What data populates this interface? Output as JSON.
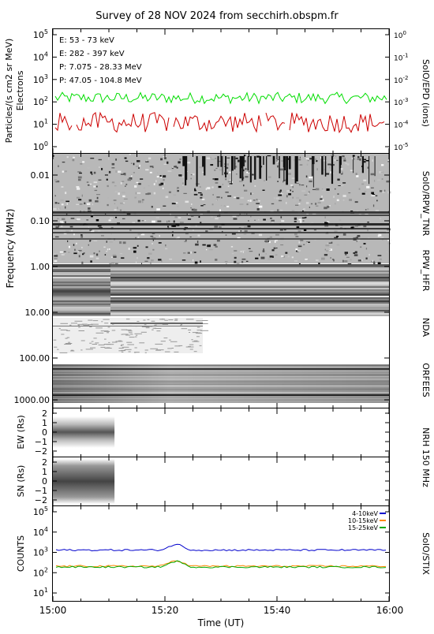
{
  "title": "Survey of 28 NOV 2024 from secchirh.obspm.fr",
  "time_axis": {
    "label": "Time (UT)",
    "ticks": [
      "15:00",
      "15:20",
      "15:40",
      "16:00"
    ],
    "range": [
      "15:00",
      "16:00"
    ]
  },
  "chart_data": [
    {
      "type": "line",
      "panel": "SolO/EPD",
      "ylabel": "Particles/(s cm2 sr MeV)",
      "ylabel2": "Electrons",
      "right_label": "SoIO/EPD (ions)",
      "left_ticks": [
        "10^0",
        "10^1",
        "10^2",
        "10^3",
        "10^4",
        "10^5"
      ],
      "right_ticks": [
        "10^-5",
        "10^-4",
        "10^-3",
        "10^-2",
        "10^-1",
        "10^0"
      ],
      "yscale": "log",
      "ylim": [
        1,
        100000
      ],
      "series": [
        {
          "name": "E: 53 - 73 keV",
          "color": "#00dd00",
          "level": 150,
          "shown": true
        },
        {
          "name": "E: 282 - 397 keV",
          "color": "#cc0000",
          "level": 12,
          "shown": true
        },
        {
          "name": "P: 7.075 - 28.33 MeV",
          "color": "#000000",
          "level": null,
          "shown": false
        },
        {
          "name": "P: 47.05 - 104.8 MeV",
          "color": "#0000aa",
          "level": null,
          "shown": false
        }
      ]
    },
    {
      "type": "heatmap",
      "panel": "Radio spectrogram",
      "ylabel": "Frequency (MHz)",
      "yscale": "log",
      "ticks": [
        "0.01",
        "0.10",
        "1.00",
        "10.00",
        "100.00",
        "1000.00"
      ],
      "instruments": [
        "SoIO/RPW_TNR",
        "RPW_HFR",
        "NDA",
        "ORFEES"
      ]
    },
    {
      "type": "heatmap",
      "panel": "NRH EW",
      "ylabel": "EW (Rs)",
      "ticks": [
        "2",
        "1",
        "0",
        "-1",
        "-2"
      ],
      "ylim": [
        -2.5,
        2.5
      ],
      "data_end": "15:11"
    },
    {
      "type": "heatmap",
      "panel": "NRH SN",
      "ylabel": "SN (Rs)",
      "ticks": [
        "2",
        "1",
        "0",
        "-1",
        "-2"
      ],
      "ylim": [
        -2.5,
        2.5
      ],
      "data_end": "15:11",
      "right_label": "NRH 150 MHz"
    },
    {
      "type": "line",
      "panel": "SolO/STIX",
      "ylabel": "COUNTS",
      "right_label": "SoIO/STIX",
      "yscale": "log",
      "ylim": [
        10,
        100000
      ],
      "ticks": [
        "10^1",
        "10^2",
        "10^3",
        "10^4",
        "10^5"
      ],
      "series": [
        {
          "name": "4-10keV",
          "color": "#0000cc",
          "level": 1300
        },
        {
          "name": "10-15keV",
          "color": "#ff8800",
          "level": 210
        },
        {
          "name": "15-25keV",
          "color": "#00aa00",
          "level": 190
        }
      ]
    }
  ]
}
